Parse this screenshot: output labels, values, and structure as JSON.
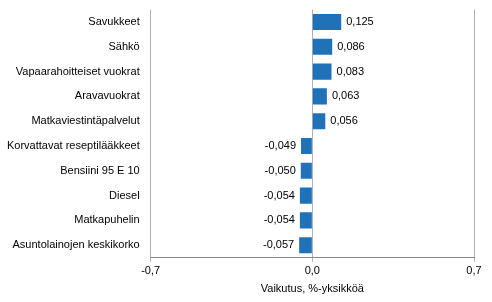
{
  "chart_data": {
    "type": "bar",
    "orientation": "horizontal",
    "x_label": "Vaikutus, %-yksikköä",
    "categories": [
      "Savukkeet",
      "Sähkö",
      "Vapaarahoitteiset vuokrat",
      "Aravavuokrat",
      "Matkaviestintäpalvelut",
      "Korvattavat reseptilääkkeet",
      "Bensiini 95 E 10",
      "Diesel",
      "Matkapuhelin",
      "Asuntolainojen keskikorko"
    ],
    "values": [
      0.125,
      0.086,
      0.083,
      0.063,
      0.056,
      -0.049,
      -0.05,
      -0.054,
      -0.054,
      -0.057
    ],
    "value_labels": [
      "0,125",
      "0,086",
      "0,083",
      "0,063",
      "0,056",
      "-0,049",
      "-0,050",
      "-0,054",
      "-0,054",
      "-0,057"
    ],
    "data_labels": true,
    "color": "#1f72b8",
    "xlim": [
      -0.7,
      0.7
    ],
    "xticks": [
      {
        "value": -0.7,
        "label": "-0,7"
      },
      {
        "value": 0,
        "label": "0,0"
      },
      {
        "value": 0.7,
        "label": "0,7"
      }
    ],
    "grid": true
  }
}
